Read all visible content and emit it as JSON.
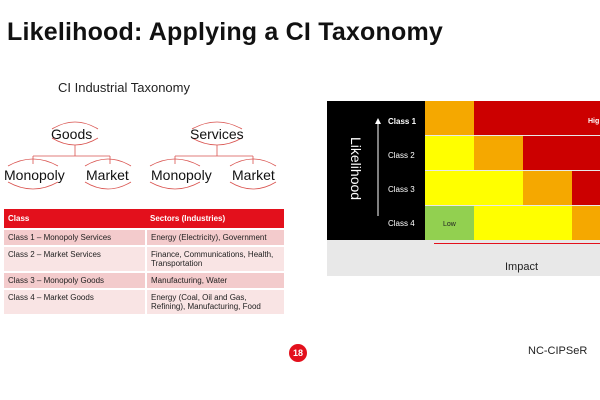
{
  "slide": {
    "title": "Likelihood: Applying a CI Taxonomy",
    "subtitle": "CI Industrial Taxonomy",
    "page_number": "18",
    "brand": "NC-CIPSeR"
  },
  "taxonomy": {
    "left": {
      "root": "Goods",
      "children": [
        "Monopoly",
        "Market"
      ]
    },
    "right": {
      "root": "Services",
      "children": [
        "Monopoly",
        "Market"
      ]
    }
  },
  "table": {
    "headers": [
      "Class",
      "Sectors (Industries)"
    ],
    "rows": [
      [
        "Class 1 – Monopoly Services",
        "Energy (Electricity), Government"
      ],
      [
        "Class 2 – Market Services",
        "Finance, Communications, Health, Transportation"
      ],
      [
        "Class 3 – Monopoly Goods",
        "Manufacturing, Water"
      ],
      [
        "Class 4 – Market Goods",
        "Energy (Coal, Oil and Gas, Refining), Manufacturing, Food"
      ]
    ]
  },
  "matrix": {
    "y_axis_label": "Likelihood",
    "x_axis_label": "Impact",
    "rows": [
      "Class 1",
      "Class 2",
      "Class 3",
      "Class 4"
    ],
    "cell_labels": {
      "low": "Low",
      "high": "Hig"
    },
    "colors": {
      "red": "#cc0000",
      "orange": "#f5a800",
      "yellow": "#ffff00",
      "green": "#92d050"
    },
    "cells": [
      [
        "orange",
        "red",
        "red",
        "red"
      ],
      [
        "yellow",
        "orange",
        "red",
        "red"
      ],
      [
        "yellow",
        "yellow",
        "orange",
        "red"
      ],
      [
        "green",
        "yellow",
        "yellow",
        "orange"
      ]
    ]
  }
}
